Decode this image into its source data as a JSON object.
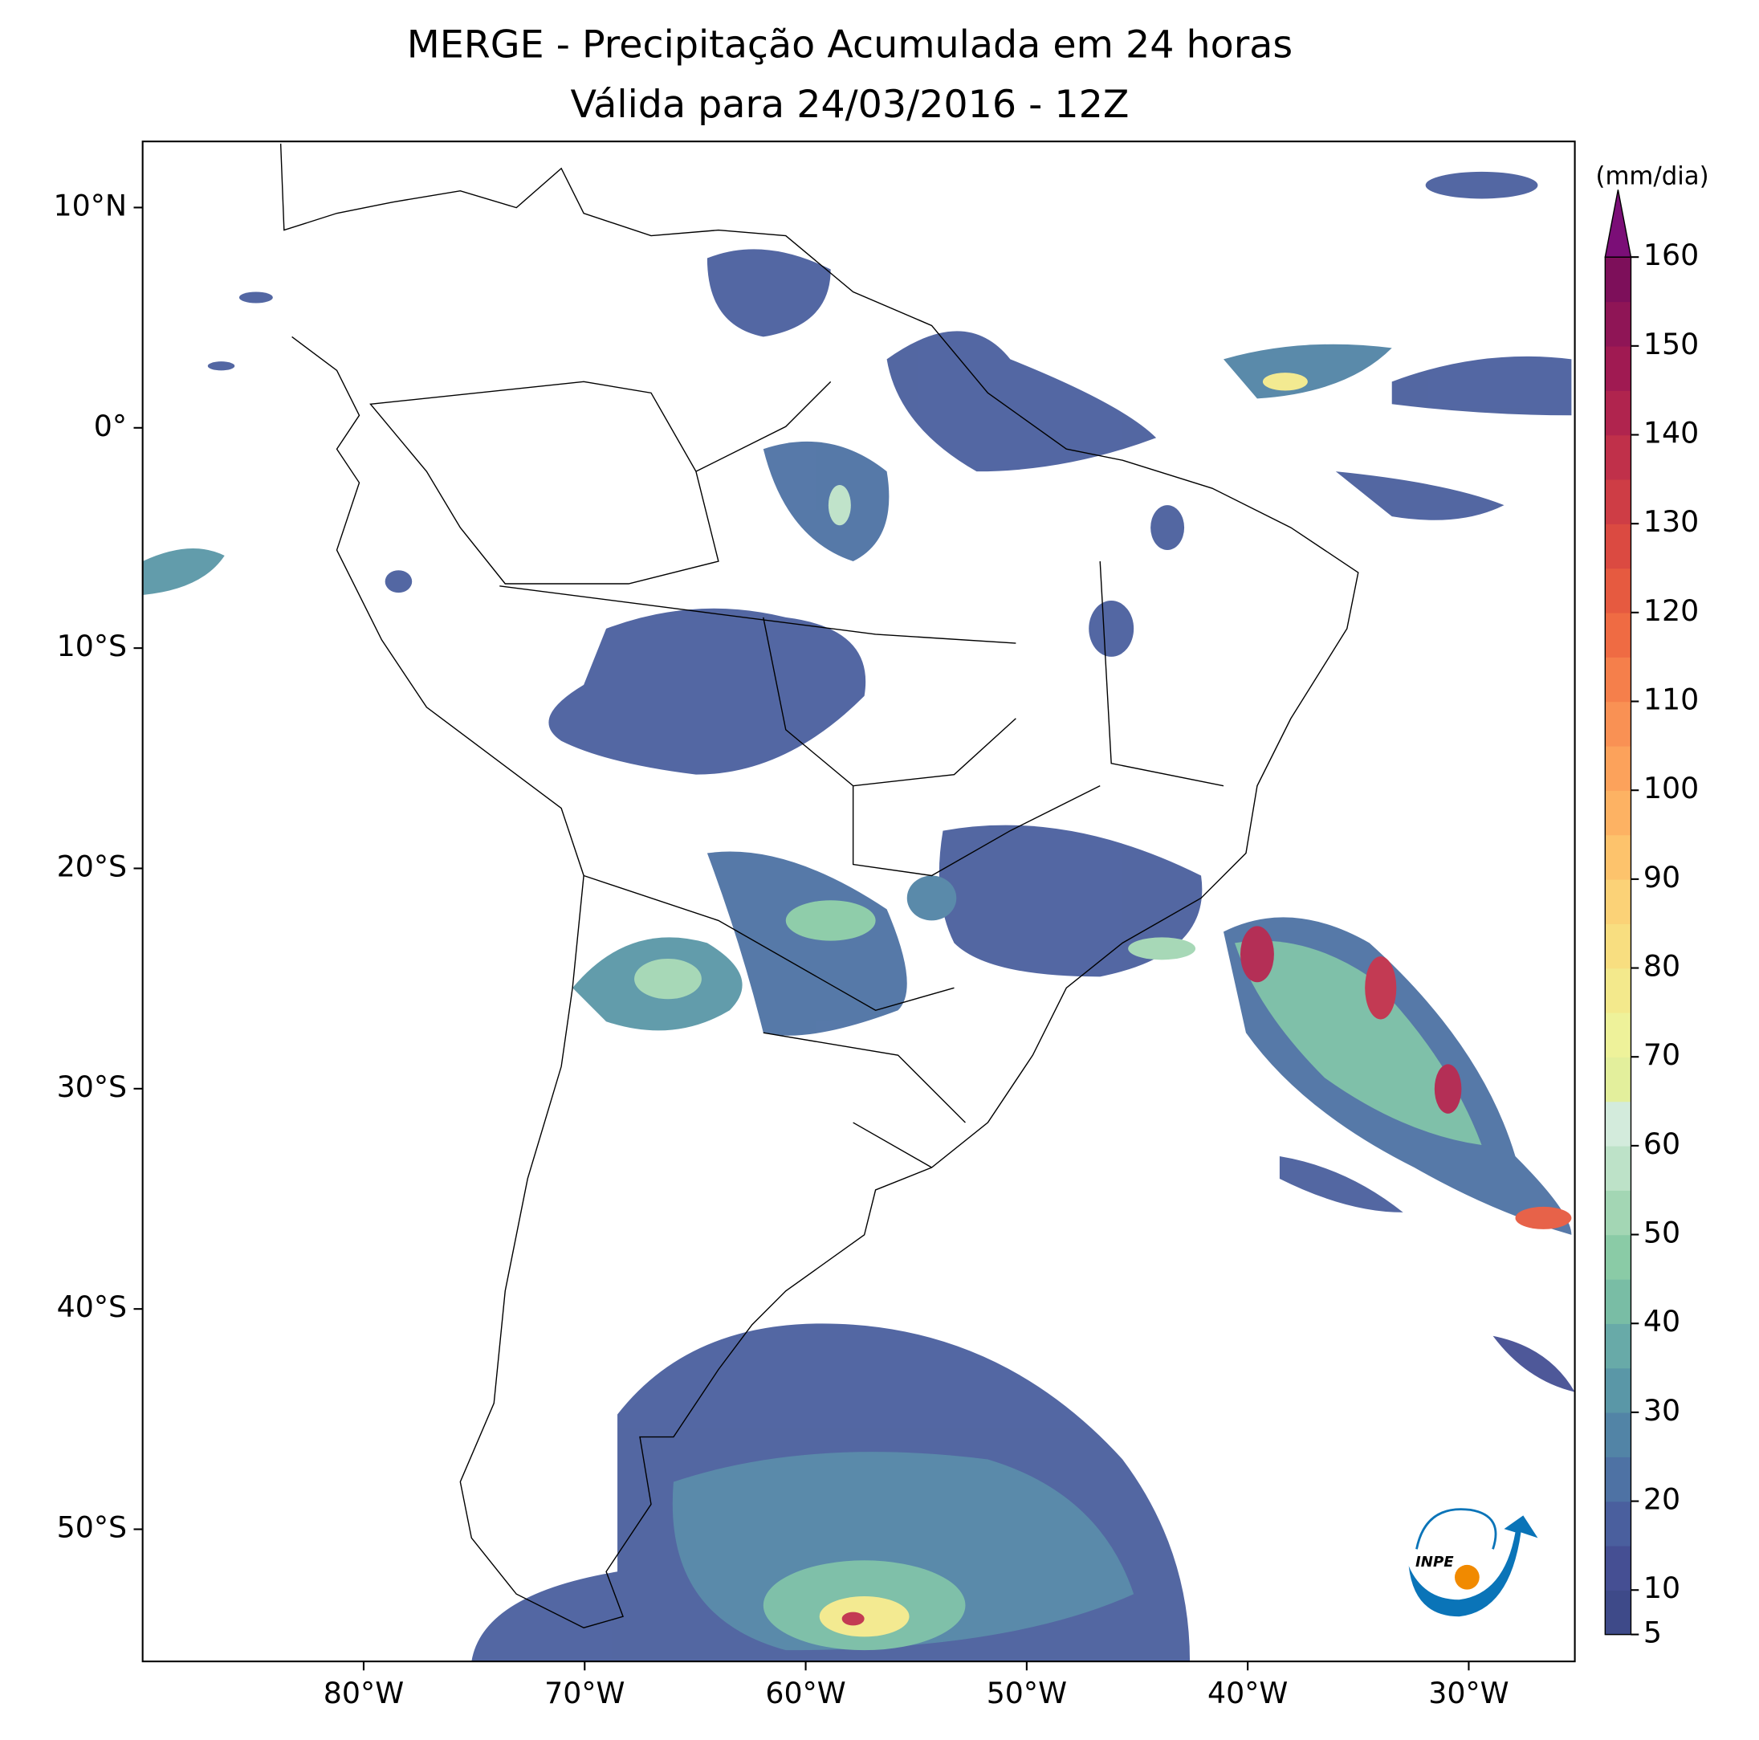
{
  "chart_data": {
    "type": "map",
    "title": "MERGE - Precipitação Acumulada em 24 horas",
    "subtitle": "Válida para 24/03/2016 - 12Z",
    "xlim": [
      -90,
      -25.2
    ],
    "ylim": [
      -56,
      13
    ],
    "xticks": [
      {
        "value": -80,
        "label": "80°W"
      },
      {
        "value": -70,
        "label": "70°W"
      },
      {
        "value": -60,
        "label": "60°W"
      },
      {
        "value": -50,
        "label": "50°W"
      },
      {
        "value": -40,
        "label": "40°W"
      },
      {
        "value": -30,
        "label": "30°W"
      }
    ],
    "yticks": [
      {
        "value": 10,
        "label": "10°N"
      },
      {
        "value": 0,
        "label": "0°"
      },
      {
        "value": -10,
        "label": "10°S"
      },
      {
        "value": -20,
        "label": "20°S"
      },
      {
        "value": -30,
        "label": "30°S"
      },
      {
        "value": -40,
        "label": "40°S"
      },
      {
        "value": -50,
        "label": "50°S"
      }
    ],
    "colorbar": {
      "label": "(mm/dia)",
      "lim": [
        5,
        160
      ],
      "ticks": [
        5,
        10,
        20,
        30,
        40,
        50,
        60,
        70,
        80,
        90,
        100,
        110,
        120,
        130,
        140,
        150,
        160
      ],
      "colors": [
        "#3e4a89",
        "#454f93",
        "#4a5f9e",
        "#4e72a4",
        "#5284a6",
        "#5a97a7",
        "#68aaa8",
        "#79bda5",
        "#8acba6",
        "#a3d6b4",
        "#bde2c8",
        "#d3ebdc",
        "#e3ef9c",
        "#eef29a",
        "#f3e98c",
        "#f8de80",
        "#fbd277",
        "#fdc36c",
        "#fdb263",
        "#fca25b",
        "#f99154",
        "#f57f4b",
        "#ef6b43",
        "#e65a40",
        "#db4a41",
        "#ce3d45",
        "#c0304a",
        "#b0244e",
        "#a01a52",
        "#8f1556",
        "#7d0f5a"
      ],
      "extend_color": "#7b0e77"
    },
    "logo": "INPE"
  }
}
